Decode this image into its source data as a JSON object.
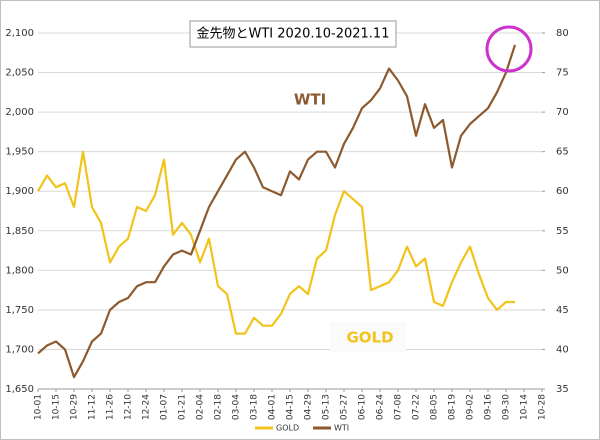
{
  "chart_data": {
    "type": "line",
    "title": "金先物とWTI 2020.10-2021.11",
    "annotations": [
      "WTI",
      "GOLD"
    ],
    "categories": [
      "10-01",
      null,
      "10-15",
      null,
      "10-29",
      null,
      "11-12",
      null,
      "11-26",
      null,
      "12-10",
      null,
      "12-24",
      null,
      "01-07",
      null,
      "01-21",
      null,
      "02-04",
      null,
      "02-18",
      null,
      "03-04",
      null,
      "03-18",
      null,
      "04-01",
      null,
      "04-15",
      null,
      "04-29",
      null,
      "05-13",
      null,
      "05-27",
      null,
      "06-10",
      null,
      "06-24",
      null,
      "07-08",
      null,
      "07-22",
      null,
      "08-05",
      null,
      "08-19",
      null,
      "09-02",
      null,
      "09-16",
      null,
      "09-30",
      null,
      "10-14",
      null,
      "10-28"
    ],
    "series": [
      {
        "name": "GOLD",
        "color": "#f2c31a",
        "axis": "y",
        "values": [
          1900,
          1920,
          1905,
          1910,
          1880,
          1950,
          1880,
          1860,
          1810,
          1830,
          1840,
          1880,
          1875,
          1895,
          1940,
          1845,
          1860,
          1845,
          1810,
          1840,
          1780,
          1770,
          1720,
          1720,
          1740,
          1730,
          1730,
          1745,
          1770,
          1780,
          1770,
          1815,
          1825,
          1870,
          1900,
          1890,
          1880,
          1775,
          1780,
          1785,
          1800,
          1830,
          1805,
          1815,
          1760,
          1755,
          1785,
          1810,
          1830,
          1795,
          1765,
          1750,
          1760,
          1760,
          null,
          null,
          null
        ]
      },
      {
        "name": "WTI",
        "color": "#8c5a2e",
        "axis": "y2",
        "values": [
          39.5,
          40.5,
          41,
          40,
          36.5,
          38.5,
          41,
          42,
          45,
          46,
          46.5,
          48,
          48.5,
          48.5,
          50.5,
          52,
          52.5,
          52,
          55,
          58,
          60,
          62,
          64,
          65,
          63,
          60.5,
          60,
          59.5,
          62.5,
          61.5,
          64,
          65,
          65,
          63,
          66,
          68,
          70.5,
          71.5,
          73,
          75.5,
          74,
          72,
          67,
          71,
          68,
          69,
          63,
          67,
          68.5,
          69.5,
          70.5,
          72.5,
          75,
          78.5,
          null,
          null,
          null
        ]
      }
    ],
    "ylim": [
      1650,
      2100
    ],
    "yticks": [
      {
        "value": 1650,
        "label": "1,650"
      },
      {
        "value": 1700,
        "label": "1,700"
      },
      {
        "value": 1750,
        "label": "1,750"
      },
      {
        "value": 1800,
        "label": "1,800"
      },
      {
        "value": 1850,
        "label": "1,850"
      },
      {
        "value": 1900,
        "label": "1,900"
      },
      {
        "value": 1950,
        "label": "1,950"
      },
      {
        "value": 2000,
        "label": "2,000"
      },
      {
        "value": 2050,
        "label": "2,050"
      },
      {
        "value": 2100,
        "label": "2,100"
      }
    ],
    "y2lim": [
      35,
      80
    ],
    "y2ticks": [
      35,
      40,
      45,
      50,
      55,
      60,
      65,
      70,
      75,
      80
    ],
    "grid": true,
    "legend": "bottom"
  }
}
